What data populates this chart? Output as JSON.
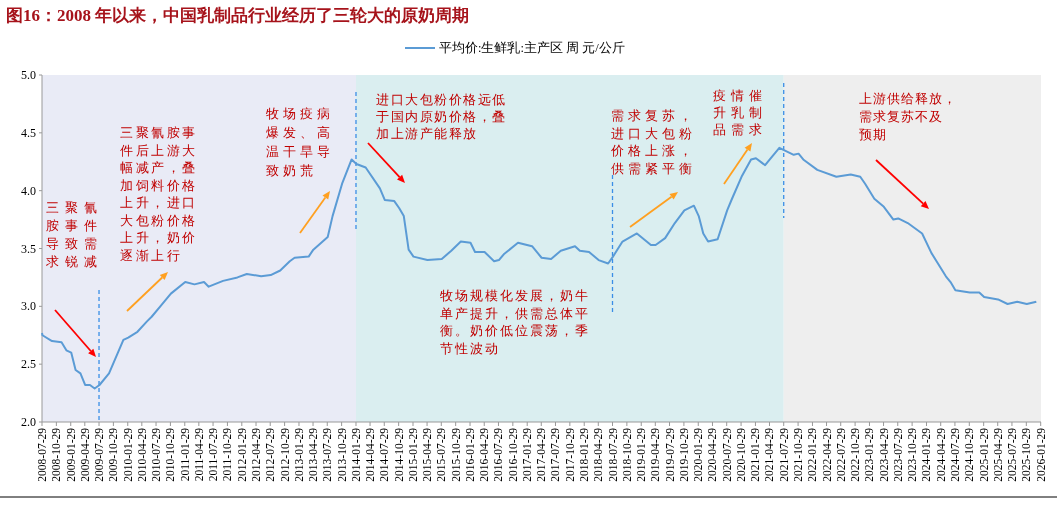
{
  "chart_data": {
    "type": "line",
    "title": "图16：2008 年以来，中国乳制品行业经历了三轮大的原奶周期",
    "series": [
      {
        "name": "平均价:生鲜乳:主产区 周 元/公斤",
        "color": "#5b9bd5",
        "x": [
          "2008-07-29",
          "2008-08",
          "2008-10",
          "2008-12",
          "2009-01",
          "2009-02",
          "2009-03",
          "2009-04",
          "2009-05",
          "2009-06",
          "2009-07",
          "2009-08",
          "2009-10",
          "2010-01",
          "2010-02",
          "2010-04",
          "2010-06",
          "2010-07",
          "2010-09",
          "2010-11",
          "2011-02",
          "2011-04",
          "2011-06",
          "2011-07",
          "2011-10",
          "2012-01",
          "2012-03",
          "2012-06",
          "2012-08",
          "2012-10",
          "2012-12",
          "2013-01",
          "2013-04",
          "2013-05",
          "2013-08",
          "2013-09",
          "2013-11",
          "2014-01",
          "2014-02",
          "2014-04",
          "2014-07",
          "2014-08",
          "2014-10",
          "2014-11",
          "2014-12",
          "2015-01",
          "2015-02",
          "2015-05",
          "2015-08",
          "2015-10",
          "2015-12",
          "2016-02",
          "2016-03",
          "2016-05",
          "2016-07",
          "2016-08",
          "2016-09",
          "2016-12",
          "2017-03",
          "2017-05",
          "2017-07",
          "2017-09",
          "2017-12",
          "2018-01",
          "2018-03",
          "2018-05",
          "2018-07",
          "2018-08",
          "2018-10",
          "2019-01",
          "2019-04",
          "2019-05",
          "2019-07",
          "2019-09",
          "2019-11",
          "2020-01",
          "2020-02",
          "2020-03",
          "2020-04",
          "2020-06",
          "2020-08",
          "2020-09",
          "2020-11",
          "2021-01",
          "2021-02",
          "2021-04",
          "2021-05",
          "2021-07",
          "2021-10",
          "2021-11",
          "2021-12",
          "2022-03",
          "2022-07",
          "2022-10",
          "2022-12",
          "2023-01",
          "2023-03",
          "2023-05",
          "2023-07",
          "2023-08",
          "2023-10",
          "2024-01",
          "2024-03",
          "2024-06",
          "2024-07",
          "2024-08",
          "2024-11",
          "2025-01",
          "2025-02",
          "2025-05",
          "2025-07",
          "2025-09",
          "2025-11",
          "2026-01"
        ],
        "values": [
          2.77,
          2.75,
          2.7,
          2.69,
          2.62,
          2.6,
          2.45,
          2.42,
          2.32,
          2.32,
          2.29,
          2.32,
          2.42,
          2.71,
          2.73,
          2.78,
          2.87,
          2.91,
          3.01,
          3.11,
          3.21,
          3.19,
          3.21,
          3.17,
          3.22,
          3.25,
          3.28,
          3.26,
          3.27,
          3.31,
          3.39,
          3.42,
          3.43,
          3.49,
          3.6,
          3.78,
          4.06,
          4.27,
          4.23,
          4.2,
          4.02,
          3.92,
          3.91,
          3.85,
          3.78,
          3.49,
          3.43,
          3.4,
          3.41,
          3.48,
          3.56,
          3.55,
          3.47,
          3.47,
          3.39,
          3.4,
          3.45,
          3.55,
          3.52,
          3.42,
          3.41,
          3.48,
          3.52,
          3.48,
          3.47,
          3.4,
          3.37,
          3.43,
          3.56,
          3.63,
          3.53,
          3.53,
          3.59,
          3.72,
          3.83,
          3.87,
          3.78,
          3.63,
          3.56,
          3.58,
          3.83,
          3.93,
          4.12,
          4.27,
          4.28,
          4.22,
          4.27,
          4.37,
          4.31,
          4.32,
          4.27,
          4.18,
          4.12,
          4.14,
          4.12,
          4.06,
          3.93,
          3.86,
          3.75,
          3.76,
          3.72,
          3.63,
          3.46,
          3.26,
          3.21,
          3.14,
          3.12,
          3.12,
          3.08,
          3.06,
          3.02,
          3.04,
          3.02,
          3.04
        ]
      }
    ],
    "xlim": [
      "2008-07-29",
      "2026-01-31"
    ],
    "xticks": [
      "2008-07-29",
      "2008-10-29",
      "2009-01-29",
      "2009-04-29",
      "2009-07-29",
      "2009-10-29",
      "2010-01-29",
      "2010-04-29",
      "2010-07-29",
      "2010-10-29",
      "2011-01-29",
      "2011-04-29",
      "2011-07-29",
      "2011-10-29",
      "2012-01-29",
      "2012-04-29",
      "2012-07-29",
      "2012-10-29",
      "2013-01-29",
      "2013-04-29",
      "2013-07-29",
      "2013-10-29",
      "2014-01-29",
      "2014-04-29",
      "2014-07-29",
      "2014-10-29",
      "2015-01-29",
      "2015-04-29",
      "2015-07-29",
      "2015-10-29",
      "2016-01-29",
      "2016-04-29",
      "2016-07-29",
      "2016-10-29",
      "2017-01-29",
      "2017-04-29",
      "2017-07-29",
      "2017-10-29",
      "2018-01-29",
      "2018-04-29",
      "2018-07-29",
      "2018-10-29",
      "2019-01-29",
      "2019-04-29",
      "2019-07-29",
      "2019-10-29",
      "2020-01-29",
      "2020-04-29",
      "2020-07-29",
      "2020-10-29",
      "2021-01-29",
      "2021-04-29",
      "2021-07-29",
      "2021-10-29",
      "2022-01-29",
      "2022-04-29",
      "2022-07-29",
      "2022-10-29",
      "2023-01-29",
      "2023-04-29",
      "2023-07-29",
      "2023-10-29",
      "2024-01-29",
      "2024-04-29",
      "2024-07-29",
      "2024-10-29",
      "2025-01-29",
      "2025-04-29",
      "2025-07-29",
      "2025-10-29",
      "2026-01-29"
    ],
    "ylim": [
      2.0,
      5.0
    ],
    "yticks": [
      {
        "value": 2.0,
        "label": "2.0"
      },
      {
        "value": 2.5,
        "label": "2.5"
      },
      {
        "value": 3.0,
        "label": "3.0"
      },
      {
        "value": 3.5,
        "label": "3.5"
      },
      {
        "value": 4.0,
        "label": "4.0"
      },
      {
        "value": 4.5,
        "label": "4.5"
      },
      {
        "value": 5.0,
        "label": "5.0"
      }
    ],
    "bands": [
      {
        "axis": "x",
        "from": "2008-07-29",
        "to": "2014-01-29",
        "color": "#e9ebf6"
      },
      {
        "axis": "x",
        "from": "2014-01-29",
        "to": "2021-07-29",
        "color": "#daeef0"
      },
      {
        "axis": "x",
        "from": "2021-07-29",
        "to": "2026-01-31",
        "color": "#eeeeee"
      }
    ],
    "ref_lines": [
      {
        "axis": "x",
        "value": "2009-07-29",
        "color": "#3a8ee6",
        "line_style": "dashed"
      },
      {
        "axis": "x",
        "value": "2014-01-29",
        "color": "#3a8ee6",
        "line_style": "dashed"
      },
      {
        "axis": "x",
        "value": "2018-07-29",
        "color": "#3a8ee6",
        "line_style": "dashed"
      },
      {
        "axis": "x",
        "value": "2021-07-29",
        "color": "#3a8ee6",
        "line_style": "dashed"
      }
    ],
    "annotations": [
      "三聚氰胺事件导致需求锐减",
      "三聚氰胺事件后上游大幅减产，叠加饲料价格上升，进口大包粉价格上升，奶价逐渐上行",
      "牧场疫病爆发、高温干旱导致奶荒",
      "进口大包粉价格远低于国内原奶价格，叠加上游产能释放",
      "牧场规模化发展，奶牛单产提升，供需总体平衡。奶价低位震荡，季节性波动",
      "需求复苏，进口大包粉价格上涨，供需紧平衡",
      "疫情催升乳制品需求",
      "上游供给释放，需求复苏不及预期"
    ],
    "legend": "top",
    "marker": "none",
    "line_style": "solid",
    "grid": false
  }
}
